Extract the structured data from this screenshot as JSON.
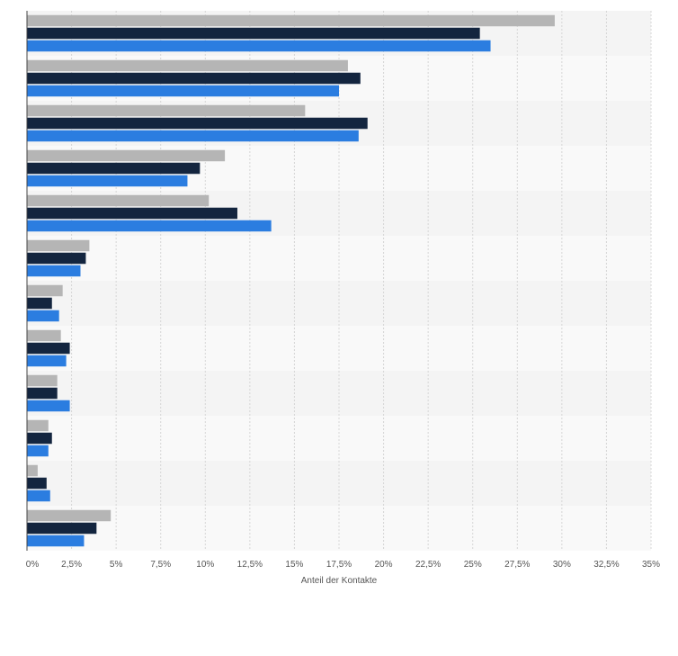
{
  "chart_data": {
    "type": "bar",
    "orientation": "horizontal",
    "title": "",
    "xlabel": "Anteil der Kontakte",
    "ylabel": "",
    "xlim": [
      0,
      35
    ],
    "xticks": [
      0,
      2.5,
      5,
      7.5,
      10,
      12.5,
      15,
      17.5,
      20,
      22.5,
      25,
      27.5,
      30,
      32.5,
      35
    ],
    "xtick_labels": [
      "0%",
      "2,5%",
      "5%",
      "7,5%",
      "10%",
      "12,5%",
      "15%",
      "17,5%",
      "20%",
      "22,5%",
      "25%",
      "27,5%",
      "30%",
      "32,5%",
      "35%"
    ],
    "grid": "vertical dashed",
    "band_colors": [
      "#f4f4f4",
      "#f9f9f9"
    ],
    "category_count": 12,
    "series": [
      {
        "color": "#b5b5b5",
        "values": [
          29.6,
          18.0,
          15.6,
          11.1,
          10.2,
          3.5,
          2.0,
          1.9,
          1.7,
          1.2,
          0.6,
          4.7
        ]
      },
      {
        "color": "#13253f",
        "values": [
          25.4,
          18.7,
          19.1,
          9.7,
          11.8,
          3.3,
          1.4,
          2.4,
          1.7,
          1.4,
          1.1,
          3.9
        ]
      },
      {
        "color": "#2b7de0",
        "values": [
          26.0,
          17.5,
          18.6,
          9.0,
          13.7,
          3.0,
          1.8,
          2.2,
          2.4,
          1.2,
          1.3,
          3.2
        ]
      }
    ]
  }
}
